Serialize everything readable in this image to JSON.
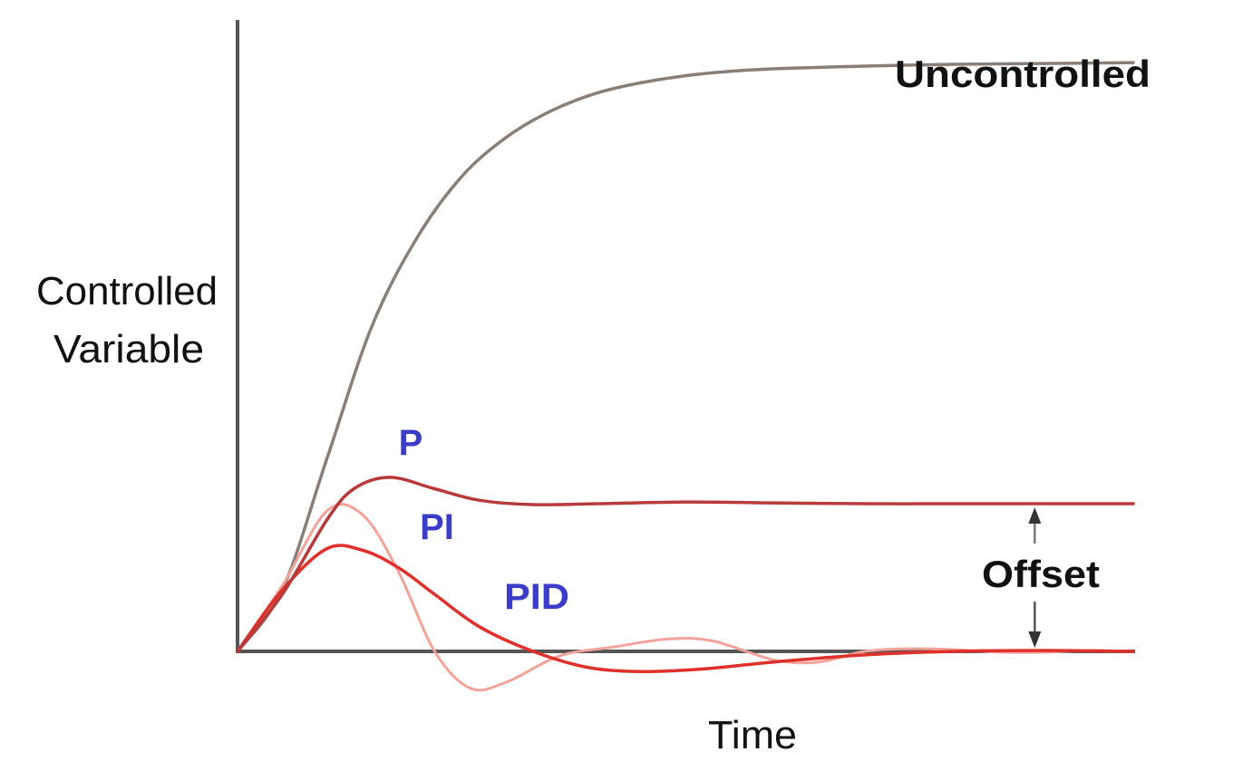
{
  "chart_data": {
    "type": "line",
    "title": "",
    "xlabel": "Time",
    "ylabel_lines": [
      "Controlled",
      "Variable"
    ],
    "xlim": [
      0,
      10
    ],
    "ylim": [
      -0.3,
      6.8
    ],
    "grid": false,
    "legend": "none",
    "series": [
      {
        "name": "Uncontrolled",
        "color": "#8a7f78",
        "x": [
          0,
          0.5,
          1.0,
          1.5,
          2.0,
          2.5,
          3.0,
          3.5,
          4.0,
          4.5,
          5.0,
          5.5,
          6.0,
          7.0,
          8.0,
          9.0,
          10.0
        ],
        "y": [
          0,
          0.7,
          2.2,
          3.7,
          4.7,
          5.4,
          5.85,
          6.15,
          6.35,
          6.47,
          6.55,
          6.6,
          6.63,
          6.66,
          6.68,
          6.69,
          6.7
        ]
      },
      {
        "name": "P",
        "color": "#b83a3a",
        "x": [
          0,
          0.5,
          1.0,
          1.3,
          1.7,
          2.2,
          2.7,
          3.3,
          4.0,
          5.0,
          6.0,
          7.0,
          8.0,
          9.0,
          10.0
        ],
        "y": [
          0,
          0.65,
          1.5,
          1.85,
          1.98,
          1.85,
          1.72,
          1.67,
          1.68,
          1.7,
          1.69,
          1.68,
          1.68,
          1.68,
          1.68
        ]
      },
      {
        "name": "PI",
        "color": "#f4a39a",
        "x": [
          0,
          0.5,
          1.0,
          1.4,
          1.8,
          2.2,
          2.6,
          3.0,
          3.6,
          4.2,
          4.8,
          5.3,
          6.0,
          6.5,
          7.0,
          7.5,
          8.0,
          8.5,
          9.0,
          9.5,
          10.0
        ],
        "y": [
          0,
          0.75,
          1.6,
          1.55,
          0.9,
          0.0,
          -0.42,
          -0.35,
          -0.05,
          0.05,
          0.14,
          0.12,
          -0.1,
          -0.12,
          0.0,
          0.03,
          0.02,
          -0.01,
          -0.01,
          0.01,
          0.0
        ]
      },
      {
        "name": "PID",
        "color": "#e0302b",
        "x": [
          0,
          0.5,
          1.0,
          1.4,
          1.8,
          2.2,
          2.7,
          3.3,
          3.9,
          4.5,
          5.2,
          6.0,
          7.0,
          8.0,
          9.0,
          10.0
        ],
        "y": [
          0,
          0.7,
          1.17,
          1.15,
          0.95,
          0.65,
          0.28,
          0.0,
          -0.18,
          -0.23,
          -0.2,
          -0.12,
          -0.04,
          0.0,
          0.01,
          0.0
        ]
      }
    ],
    "annotations": [
      {
        "text": "Uncontrolled",
        "color": "#111111",
        "bold": true
      },
      {
        "text": "P",
        "color": "#3b3dc8",
        "bold": true
      },
      {
        "text": "PI",
        "color": "#3b3dc8",
        "bold": true
      },
      {
        "text": "PID",
        "color": "#3b3dc8",
        "bold": true
      },
      {
        "text": "Offset",
        "color": "#111111",
        "bold": true
      }
    ],
    "offset_marker": {
      "x": 8.9,
      "from": 0,
      "to": 1.68
    }
  }
}
